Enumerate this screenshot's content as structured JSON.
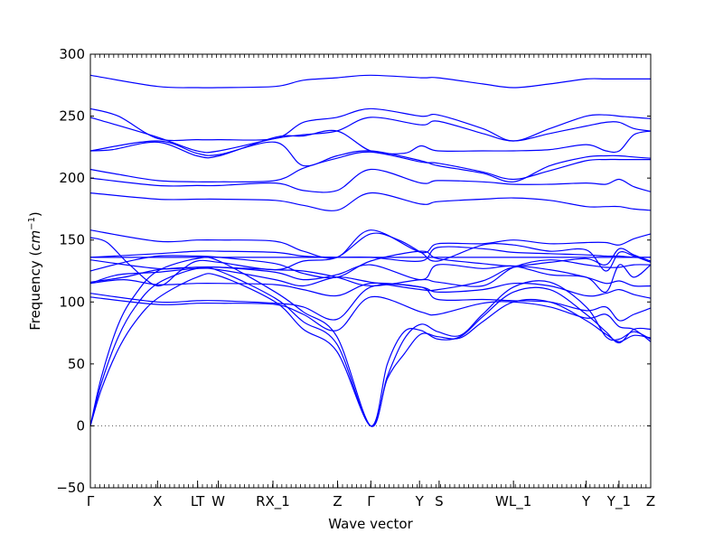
{
  "chart_data": {
    "type": "line",
    "title": "",
    "xlabel": "Wave vector",
    "ylabel": "Frequency",
    "ylabel_unit": "cm",
    "ylabel_unit_exponent": "−1",
    "ylim": [
      -50,
      300
    ],
    "yticks": [
      -50,
      0,
      50,
      100,
      150,
      200,
      250,
      300
    ],
    "grid": false,
    "line_color": "#0000ff",
    "zero_line_color": "#555555",
    "x_range": [
      0,
      1
    ],
    "xticks": [
      {
        "label": "Γ",
        "pos": 0.0
      },
      {
        "label": "X",
        "pos": 0.1199
      },
      {
        "label": "LT",
        "pos": 0.1913
      },
      {
        "label": "W",
        "pos": 0.2283
      },
      {
        "label": "RX_1",
        "pos": 0.3258
      },
      {
        "label": "Z",
        "pos": 0.4411
      },
      {
        "label": "Γ",
        "pos": 0.5006
      },
      {
        "label": "Y",
        "pos": 0.5874
      },
      {
        "label": "S",
        "pos": 0.6224
      },
      {
        "label": "WL_1",
        "pos": 0.7551
      },
      {
        "label": "Y",
        "pos": 0.8849
      },
      {
        "label": "Y_1",
        "pos": 0.9434
      },
      {
        "label": "Z",
        "pos": 1.0
      }
    ],
    "series": [
      {
        "x": [
          0,
          0.12,
          0.19,
          0.23,
          0.33,
          0.38,
          0.44,
          0.5,
          0.59,
          0.62,
          0.7,
          0.755,
          0.82,
          0.885,
          0.92,
          0.944,
          0.97,
          1.0
        ],
        "y": [
          283,
          274,
          273,
          273,
          274,
          279,
          281,
          283,
          281,
          281,
          276,
          273,
          276,
          280,
          280,
          280,
          280,
          280
        ]
      },
      {
        "x": [
          0,
          0.05,
          0.12,
          0.19,
          0.23,
          0.33,
          0.38,
          0.44,
          0.5,
          0.59,
          0.62,
          0.7,
          0.755,
          0.82,
          0.885,
          0.92,
          0.944,
          0.97,
          1.0
        ],
        "y": [
          256,
          250,
          232,
          231,
          231,
          232,
          245,
          249,
          256,
          250,
          251,
          240,
          230,
          240,
          250,
          251,
          250,
          249,
          248
        ]
      },
      {
        "x": [
          0,
          0.12,
          0.19,
          0.23,
          0.33,
          0.38,
          0.44,
          0.5,
          0.59,
          0.62,
          0.7,
          0.755,
          0.82,
          0.885,
          0.92,
          0.944,
          0.97,
          1.0
        ],
        "y": [
          249,
          233,
          222,
          222,
          232,
          235,
          238,
          249,
          243,
          246,
          236,
          230,
          236,
          242,
          245,
          245,
          240,
          238
        ]
      },
      {
        "x": [
          0,
          0.04,
          0.12,
          0.19,
          0.23,
          0.33,
          0.38,
          0.44,
          0.5,
          0.56,
          0.59,
          0.62,
          0.7,
          0.755,
          0.82,
          0.885,
          0.92,
          0.944,
          0.97,
          1.0
        ],
        "y": [
          222,
          223,
          229,
          218,
          218,
          233,
          234,
          238,
          222,
          220,
          226,
          222,
          222,
          222,
          223,
          227,
          222,
          222,
          235,
          238
        ]
      },
      {
        "x": [
          0,
          0.12,
          0.19,
          0.23,
          0.33,
          0.38,
          0.44,
          0.5,
          0.59,
          0.62,
          0.7,
          0.755,
          0.82,
          0.885,
          0.92,
          0.944,
          0.97,
          1.0
        ],
        "y": [
          222,
          230,
          220,
          219,
          229,
          210,
          218,
          222,
          214,
          210,
          204,
          197,
          210,
          217,
          218,
          218,
          217,
          216
        ]
      },
      {
        "x": [
          0,
          0.05,
          0.12,
          0.19,
          0.23,
          0.33,
          0.38,
          0.44,
          0.5,
          0.59,
          0.62,
          0.7,
          0.755,
          0.82,
          0.885,
          0.92,
          0.944,
          0.97,
          1.0
        ],
        "y": [
          207,
          203,
          198,
          197,
          197,
          198,
          208,
          216,
          221,
          213,
          212,
          205,
          199,
          206,
          214,
          215,
          215,
          215,
          215
        ]
      },
      {
        "x": [
          0,
          0.12,
          0.19,
          0.23,
          0.33,
          0.38,
          0.44,
          0.5,
          0.59,
          0.62,
          0.7,
          0.755,
          0.82,
          0.885,
          0.92,
          0.944,
          0.97,
          1.0
        ],
        "y": [
          200,
          194,
          194,
          194,
          196,
          190,
          190,
          207,
          196,
          198,
          197,
          195,
          195,
          196,
          195,
          199,
          193,
          189
        ]
      },
      {
        "x": [
          0,
          0.12,
          0.19,
          0.23,
          0.33,
          0.38,
          0.44,
          0.5,
          0.59,
          0.62,
          0.7,
          0.755,
          0.82,
          0.885,
          0.92,
          0.944,
          0.97,
          1.0
        ],
        "y": [
          188,
          183,
          183,
          183,
          182,
          178,
          174,
          188,
          179,
          181,
          183,
          184,
          182,
          177,
          177,
          177,
          175,
          174
        ]
      },
      {
        "x": [
          0,
          0.12,
          0.19,
          0.23,
          0.33,
          0.38,
          0.44,
          0.5,
          0.59,
          0.62,
          0.7,
          0.755,
          0.82,
          0.885,
          0.92,
          0.944,
          0.97,
          1.0
        ],
        "y": [
          158,
          149,
          150,
          150,
          149,
          141,
          136,
          158,
          140,
          147,
          147,
          150,
          147,
          148,
          148,
          146,
          151,
          155
        ]
      },
      {
        "x": [
          0,
          0.03,
          0.07,
          0.12,
          0.16,
          0.19,
          0.23,
          0.33,
          0.38,
          0.44,
          0.5,
          0.55,
          0.59,
          0.62,
          0.7,
          0.755,
          0.82,
          0.885,
          0.92,
          0.944,
          0.97,
          1.0
        ],
        "y": [
          152,
          148,
          130,
          113,
          125,
          133,
          132,
          126,
          133,
          136,
          155,
          150,
          140,
          133,
          146,
          146,
          141,
          142,
          125,
          140,
          137,
          132
        ]
      },
      {
        "x": [
          0,
          0.12,
          0.19,
          0.23,
          0.33,
          0.38,
          0.44,
          0.5,
          0.59,
          0.62,
          0.7,
          0.755,
          0.82,
          0.885,
          0.92,
          0.944,
          0.97,
          1.0
        ],
        "y": [
          136,
          139,
          141,
          141,
          140,
          137,
          136,
          136,
          133,
          144,
          143,
          140,
          139,
          138,
          137,
          137,
          136,
          136
        ]
      },
      {
        "x": [
          0,
          0.12,
          0.19,
          0.23,
          0.33,
          0.38,
          0.44,
          0.5,
          0.59,
          0.62,
          0.7,
          0.755,
          0.82,
          0.885,
          0.92,
          0.944,
          0.97,
          1.0
        ],
        "y": [
          136,
          136,
          136,
          136,
          136,
          136,
          136,
          136,
          136,
          136,
          136,
          136,
          136,
          136,
          136,
          136,
          136,
          136
        ]
      },
      {
        "x": [
          0,
          0.06,
          0.12,
          0.19,
          0.23,
          0.33,
          0.38,
          0.44,
          0.5,
          0.59,
          0.62,
          0.7,
          0.755,
          0.82,
          0.885,
          0.92,
          0.944,
          0.97,
          1.0
        ],
        "y": [
          125,
          132,
          137,
          137,
          136,
          131,
          123,
          120,
          133,
          141,
          135,
          131,
          129,
          132,
          135,
          130,
          143,
          138,
          133
        ]
      },
      {
        "x": [
          0,
          0.06,
          0.12,
          0.19,
          0.23,
          0.33,
          0.38,
          0.44,
          0.5,
          0.59,
          0.62,
          0.7,
          0.755,
          0.82,
          0.885,
          0.92,
          0.944,
          0.97,
          1.0
        ],
        "y": [
          116,
          120,
          126,
          128,
          128,
          124,
          118,
          122,
          130,
          118,
          130,
          127,
          129,
          122,
          120,
          108,
          130,
          120,
          130
        ]
      },
      {
        "x": [
          0,
          0.05,
          0.12,
          0.19,
          0.23,
          0.33,
          0.38,
          0.44,
          0.5,
          0.59,
          0.62,
          0.7,
          0.755,
          0.82,
          0.885,
          0.92,
          0.944,
          0.97,
          1.0
        ],
        "y": [
          115,
          122,
          124,
          127,
          126,
          118,
          113,
          120,
          116,
          110,
          110,
          117,
          128,
          126,
          120,
          115,
          117,
          113,
          113
        ]
      },
      {
        "x": [
          0,
          0.06,
          0.12,
          0.19,
          0.23,
          0.33,
          0.38,
          0.44,
          0.5,
          0.59,
          0.62,
          0.7,
          0.755,
          0.82,
          0.885,
          0.92,
          0.944,
          0.97,
          1.0
        ],
        "y": [
          115,
          118,
          114,
          115,
          115,
          114,
          110,
          105,
          115,
          112,
          108,
          110,
          115,
          113,
          105,
          107,
          110,
          106,
          103
        ]
      },
      {
        "x": [
          0,
          0.12,
          0.19,
          0.23,
          0.33,
          0.38,
          0.44,
          0.5,
          0.59,
          0.62,
          0.7,
          0.755,
          0.82,
          0.885,
          0.92,
          0.944,
          0.97,
          1.0
        ],
        "y": [
          107,
          100,
          101,
          101,
          99,
          96,
          86,
          112,
          112,
          102,
          102,
          101,
          100,
          93,
          96,
          85,
          90,
          95
        ]
      },
      {
        "x": [
          0,
          0.12,
          0.19,
          0.23,
          0.33,
          0.38,
          0.44,
          0.5,
          0.59,
          0.62,
          0.7,
          0.755,
          0.82,
          0.885,
          0.92,
          0.944,
          0.97,
          1.0
        ],
        "y": [
          104,
          98,
          99,
          99,
          98,
          90,
          77,
          104,
          92,
          90,
          99,
          100,
          96,
          87,
          90,
          80,
          78,
          68
        ]
      },
      {
        "x": [
          0,
          0.02,
          0.05,
          0.08,
          0.12,
          0.19,
          0.23,
          0.33,
          0.38,
          0.44,
          0.5,
          0.53,
          0.56,
          0.59,
          0.62,
          0.66,
          0.7,
          0.755,
          0.82,
          0.885,
          0.92,
          0.944,
          0.97,
          1.0
        ],
        "y": [
          0,
          40,
          82,
          106,
          125,
          135,
          133,
          108,
          92,
          72,
          0,
          40,
          70,
          82,
          76,
          73,
          90,
          112,
          116,
          96,
          72,
          70,
          76,
          70
        ]
      },
      {
        "x": [
          0,
          0.02,
          0.05,
          0.08,
          0.12,
          0.19,
          0.23,
          0.33,
          0.38,
          0.44,
          0.5,
          0.53,
          0.56,
          0.59,
          0.62,
          0.66,
          0.7,
          0.755,
          0.82,
          0.885,
          0.92,
          0.944,
          0.97,
          1.0
        ],
        "y": [
          0,
          35,
          72,
          96,
          115,
          127,
          125,
          103,
          84,
          66,
          0,
          50,
          76,
          77,
          70,
          72,
          88,
          108,
          110,
          90,
          76,
          67,
          78,
          78
        ]
      },
      {
        "x": [
          0,
          0.02,
          0.05,
          0.08,
          0.12,
          0.19,
          0.23,
          0.33,
          0.38,
          0.44,
          0.5,
          0.53,
          0.56,
          0.59,
          0.62,
          0.66,
          0.7,
          0.755,
          0.82,
          0.885,
          0.92,
          0.944,
          0.97,
          1.0
        ],
        "y": [
          0,
          30,
          62,
          84,
          103,
          120,
          121,
          100,
          78,
          60,
          0,
          38,
          58,
          74,
          72,
          71,
          84,
          100,
          100,
          85,
          74,
          68,
          73,
          71
        ]
      },
      {
        "x": [
          0,
          0.12,
          0.19,
          0.23,
          0.33,
          0.38,
          0.44,
          0.5,
          0.59,
          0.62,
          0.7,
          0.755,
          0.82,
          0.885,
          0.92,
          0.944,
          0.97,
          1.0
        ],
        "y": [
          134,
          127,
          128,
          128,
          126,
          125,
          120,
          113,
          118,
          116,
          113,
          128,
          134,
          130,
          128,
          128,
          130,
          130
        ]
      }
    ]
  }
}
